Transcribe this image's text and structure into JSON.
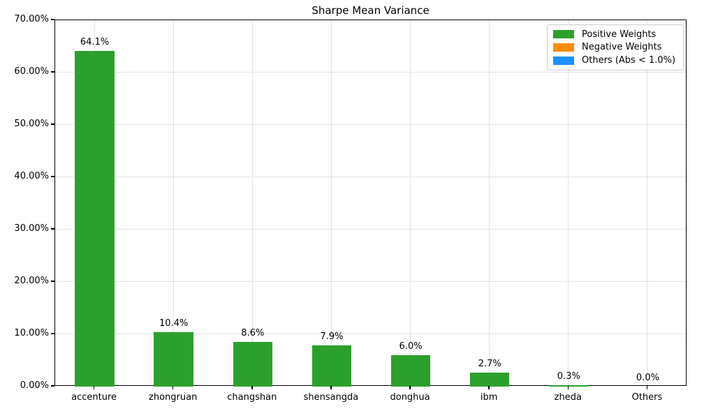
{
  "figure": {
    "background_color": "#ffffff",
    "text_color": "#000000",
    "grid_color": "#c8c8c8",
    "spine_color": "#000000"
  },
  "chart_data": {
    "type": "bar",
    "title": "Sharpe Mean Variance",
    "xlabel": "",
    "ylabel": "",
    "categories": [
      "accenture",
      "zhongruan",
      "changshan",
      "shensangda",
      "donghua",
      "ibm",
      "zheda",
      "Others"
    ],
    "values": [
      64.1,
      10.4,
      8.6,
      7.9,
      6.0,
      2.7,
      0.3,
      0.0
    ],
    "value_labels": [
      "64.1%",
      "10.4%",
      "8.6%",
      "7.9%",
      "6.0%",
      "2.7%",
      "0.3%",
      "0.0%"
    ],
    "bar_color": "#2ca02c",
    "ylim": [
      0,
      70
    ],
    "yticks": [
      0,
      10,
      20,
      30,
      40,
      50,
      60,
      70
    ],
    "ytick_labels": [
      "0.00%",
      "10.00%",
      "20.00%",
      "30.00%",
      "40.00%",
      "50.00%",
      "60.00%",
      "70.00%"
    ],
    "grid": "dotted, horizontal and vertical",
    "legend": {
      "position": "upper right",
      "entries": [
        {
          "label": "Positive Weights",
          "color": "#2ca02c"
        },
        {
          "label": "Negative Weights",
          "color": "#ff8c00"
        },
        {
          "label": "Others (Abs < 1.0%)",
          "color": "#1e90ff"
        }
      ]
    }
  }
}
